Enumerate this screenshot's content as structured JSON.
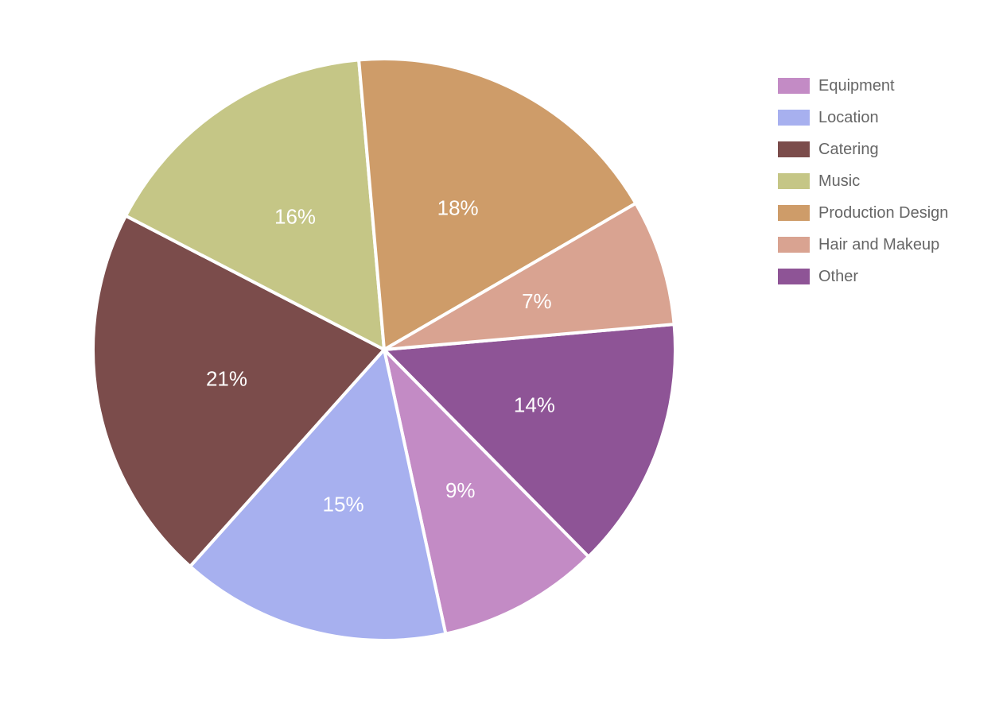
{
  "chart_data": {
    "type": "pie",
    "title": "",
    "legend_position": "top-right",
    "slices": [
      {
        "label": "Other",
        "value": 14,
        "value_label": "14%",
        "color": "#8e5496"
      },
      {
        "label": "Equipment",
        "value": 9,
        "value_label": "9%",
        "color": "#c38bc5"
      },
      {
        "label": "Location",
        "value": 15,
        "value_label": "15%",
        "color": "#a7b0ef"
      },
      {
        "label": "Catering",
        "value": 21,
        "value_label": "21%",
        "color": "#7b4c4b"
      },
      {
        "label": "Music",
        "value": 16,
        "value_label": "16%",
        "color": "#c5c686"
      },
      {
        "label": "Production Design",
        "value": 18,
        "value_label": "18%",
        "color": "#ce9c69"
      },
      {
        "label": "Hair and Makeup",
        "value": 7,
        "value_label": "7%",
        "color": "#d9a391"
      }
    ],
    "legend_order": [
      "Equipment",
      "Location",
      "Catering",
      "Music",
      "Production Design",
      "Hair and Makeup",
      "Other"
    ]
  }
}
